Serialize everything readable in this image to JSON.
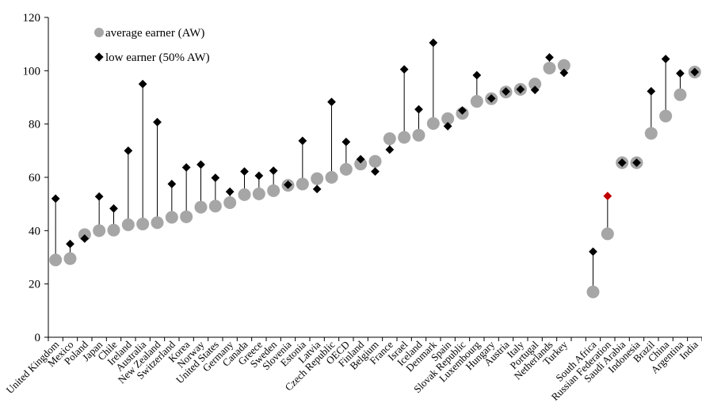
{
  "chart_data": {
    "type": "scatter",
    "title": "",
    "xlabel": "",
    "ylabel": "",
    "ylim": [
      0,
      120
    ],
    "yticks": [
      0,
      20,
      40,
      60,
      80,
      100,
      120
    ],
    "grid": false,
    "legend_position": "top-left",
    "categories": [
      "United Kingdom",
      "Mexico",
      "Poland",
      "Japan",
      "Chile",
      "Ireland",
      "Australia",
      "New Zealand",
      "Switzerland",
      "Korea",
      "Norway",
      "United States",
      "Germany",
      "Canada",
      "Greece",
      "Sweden",
      "Slovenia",
      "Estonia",
      "Latvia",
      "Czech Republic",
      "OECD",
      "Finland",
      "Belgium",
      "France",
      "Israel",
      "Iceland",
      "Denmark",
      "Spain",
      "Slovak Republic",
      "Luxembourg",
      "Hungary",
      "Austria",
      "Italy",
      "Portugal",
      "Netherlands",
      "Turkey",
      "",
      "South Africa",
      "Russian Federation",
      "Saudi Arabia",
      "Indonesia",
      "Brazil",
      "China",
      "Argentina",
      "India"
    ],
    "series": [
      {
        "name": "average earner (AW)",
        "marker": "circle",
        "color": "#a6a6a6",
        "values": [
          29,
          29.5,
          38.5,
          40,
          40.2,
          42.2,
          42.5,
          43,
          45,
          45.2,
          48.8,
          49.2,
          50.5,
          53.5,
          53.8,
          55,
          57,
          57.5,
          59.5,
          60,
          63,
          65,
          66,
          74.5,
          75,
          75.8,
          80.2,
          82,
          84,
          88.5,
          89.5,
          92,
          93,
          95,
          101,
          102,
          null,
          17,
          38.8,
          65.5,
          65.5,
          76.5,
          83,
          91,
          99.5
        ]
      },
      {
        "name": "low earner (50% AW)",
        "marker": "diamond",
        "color": "#000000",
        "highlight_color": "#c00000",
        "highlight_category": "Russian Federation",
        "values": [
          52,
          35,
          37,
          52.8,
          48.3,
          70,
          95,
          80.7,
          57.5,
          63.7,
          64.8,
          59.8,
          54.6,
          62.2,
          60.6,
          62.5,
          57.2,
          73.7,
          55.6,
          88.3,
          73.3,
          66.8,
          62.2,
          70.4,
          100.5,
          85.5,
          110.5,
          79.2,
          85.1,
          98.3,
          89.6,
          92.2,
          93,
          92.8,
          105,
          99.2,
          null,
          32.1,
          53,
          65.5,
          65.5,
          92.3,
          104.4,
          99,
          99.5
        ]
      }
    ]
  }
}
